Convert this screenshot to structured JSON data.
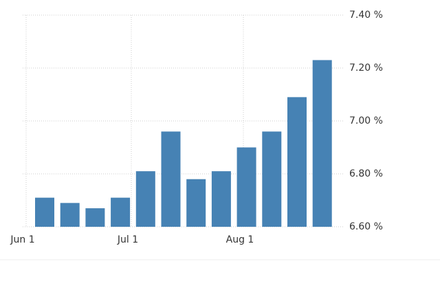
{
  "chart_data": {
    "type": "bar",
    "categories": [
      null,
      null,
      null,
      null,
      null,
      null,
      null,
      null,
      null,
      null,
      null,
      null
    ],
    "values": [
      6.71,
      6.69,
      6.67,
      6.71,
      6.81,
      6.96,
      6.78,
      6.81,
      6.9,
      6.96,
      7.09,
      7.23
    ],
    "color": "#4682b4",
    "xticks": [
      "Jun 1",
      "Jul 1",
      "Aug 1"
    ],
    "ylim": [
      6.6,
      7.4
    ],
    "yticks": [
      {
        "value": 6.6,
        "label": "6.60 %"
      },
      {
        "value": 6.8,
        "label": "6.80 %"
      },
      {
        "value": 7.0,
        "label": "7.00 %"
      },
      {
        "value": 7.2,
        "label": "7.20 %"
      },
      {
        "value": 7.4,
        "label": "7.40 %"
      }
    ],
    "grid": true
  }
}
